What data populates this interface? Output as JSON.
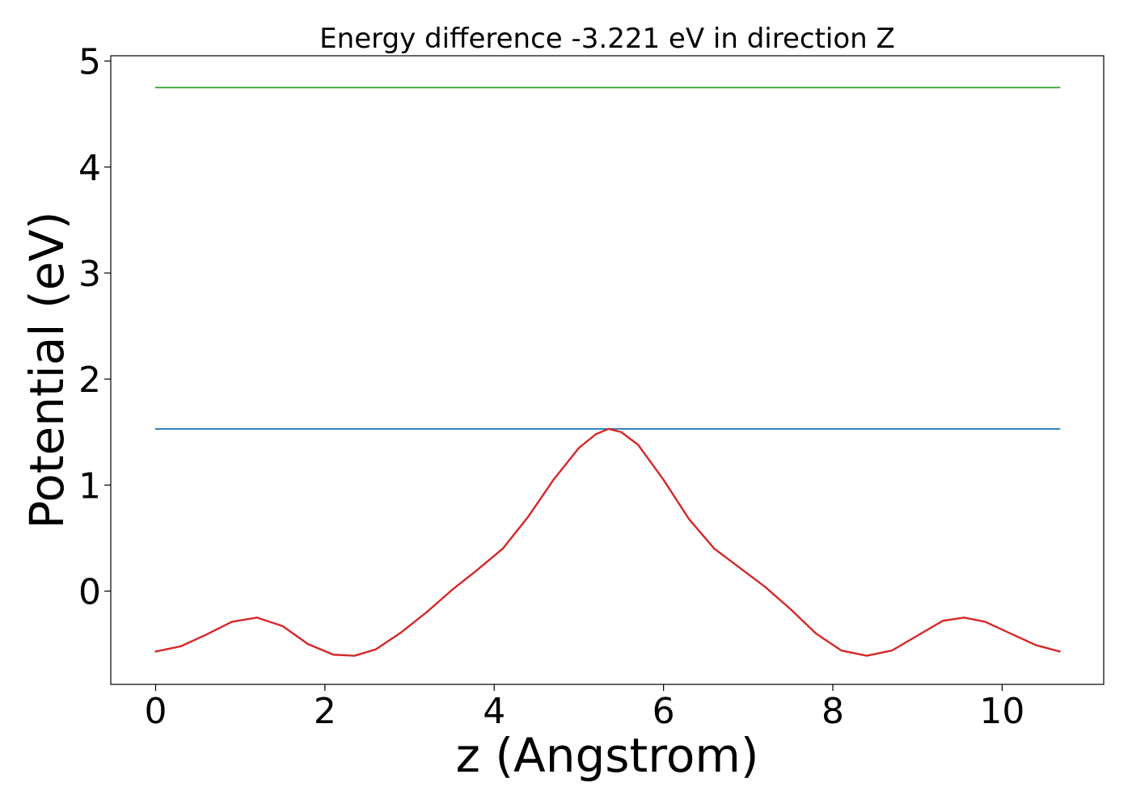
{
  "chart_data": {
    "type": "line",
    "title": "Energy difference -3.221 eV in direction Z",
    "xlabel": "z (Angstrom)",
    "ylabel": "Potential (eV)",
    "xlim": [
      -0.53,
      11.2
    ],
    "ylim": [
      -0.88,
      5.05
    ],
    "xticks": [
      0,
      2,
      4,
      6,
      8,
      10
    ],
    "yticks": [
      0,
      1,
      2,
      3,
      4,
      5
    ],
    "grid": false,
    "legend": "none",
    "series": [
      {
        "color": "#2ca02c",
        "x": [
          0,
          10.68
        ],
        "y": [
          4.75,
          4.75
        ]
      },
      {
        "color": "#1f77b4",
        "x": [
          0,
          10.68
        ],
        "y": [
          1.53,
          1.53
        ]
      },
      {
        "color": "#d62728",
        "x": [
          0,
          0.3,
          0.6,
          0.9,
          1.2,
          1.5,
          1.8,
          2.1,
          2.35,
          2.6,
          2.9,
          3.2,
          3.5,
          3.8,
          4.1,
          4.4,
          4.7,
          5.0,
          5.2,
          5.35,
          5.5,
          5.7,
          6.0,
          6.3,
          6.6,
          6.9,
          7.2,
          7.5,
          7.8,
          8.1,
          8.4,
          8.7,
          9.0,
          9.3,
          9.55,
          9.8,
          10.1,
          10.4,
          10.68
        ],
        "y": [
          -0.57,
          -0.52,
          -0.41,
          -0.29,
          -0.25,
          -0.33,
          -0.5,
          -0.6,
          -0.61,
          -0.55,
          -0.39,
          -0.2,
          0.01,
          0.2,
          0.4,
          0.7,
          1.05,
          1.35,
          1.48,
          1.53,
          1.5,
          1.38,
          1.05,
          0.68,
          0.4,
          0.22,
          0.04,
          -0.17,
          -0.4,
          -0.56,
          -0.61,
          -0.56,
          -0.42,
          -0.28,
          -0.25,
          -0.29,
          -0.4,
          -0.51,
          -0.57
        ]
      }
    ]
  }
}
